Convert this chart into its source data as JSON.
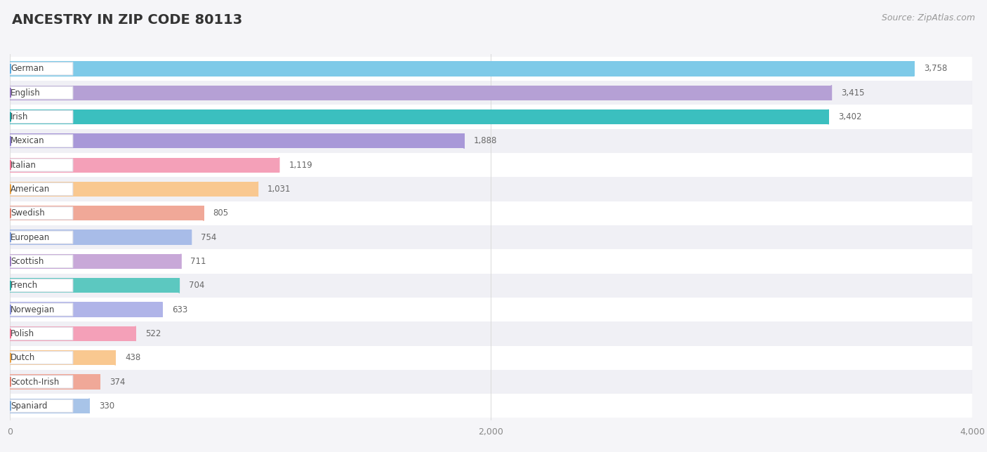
{
  "title": "ANCESTRY IN ZIP CODE 80113",
  "source": "Source: ZipAtlas.com",
  "categories": [
    "German",
    "English",
    "Irish",
    "Mexican",
    "Italian",
    "American",
    "Swedish",
    "European",
    "Scottish",
    "French",
    "Norwegian",
    "Polish",
    "Dutch",
    "Scotch-Irish",
    "Spaniard"
  ],
  "values": [
    3758,
    3415,
    3402,
    1888,
    1119,
    1031,
    805,
    754,
    711,
    704,
    633,
    522,
    438,
    374,
    330
  ],
  "bar_colors": [
    "#7ecae8",
    "#b5a0d5",
    "#3bbfbf",
    "#a898d8",
    "#f4a0b8",
    "#f9c890",
    "#f0a898",
    "#a8bce8",
    "#c8a8d8",
    "#5cc8c0",
    "#b0b4e8",
    "#f4a0b8",
    "#f9c890",
    "#f0a898",
    "#a8c4e8"
  ],
  "dot_colors": [
    "#5aaae0",
    "#9070c0",
    "#1a9f9f",
    "#8878c8",
    "#f07090",
    "#e8a040",
    "#e08070",
    "#7898d8",
    "#9878c0",
    "#2aada8",
    "#8890d8",
    "#f07090",
    "#e8a040",
    "#e08070",
    "#78a8d8"
  ],
  "xlim": [
    0,
    4000
  ],
  "xticks": [
    0,
    2000,
    4000
  ],
  "xticklabels": [
    "0",
    "2,000",
    "4,000"
  ],
  "background_color": "#f5f5f8",
  "row_color_even": "#ffffff",
  "row_color_odd": "#f0f0f5",
  "title_fontsize": 14,
  "source_fontsize": 9
}
